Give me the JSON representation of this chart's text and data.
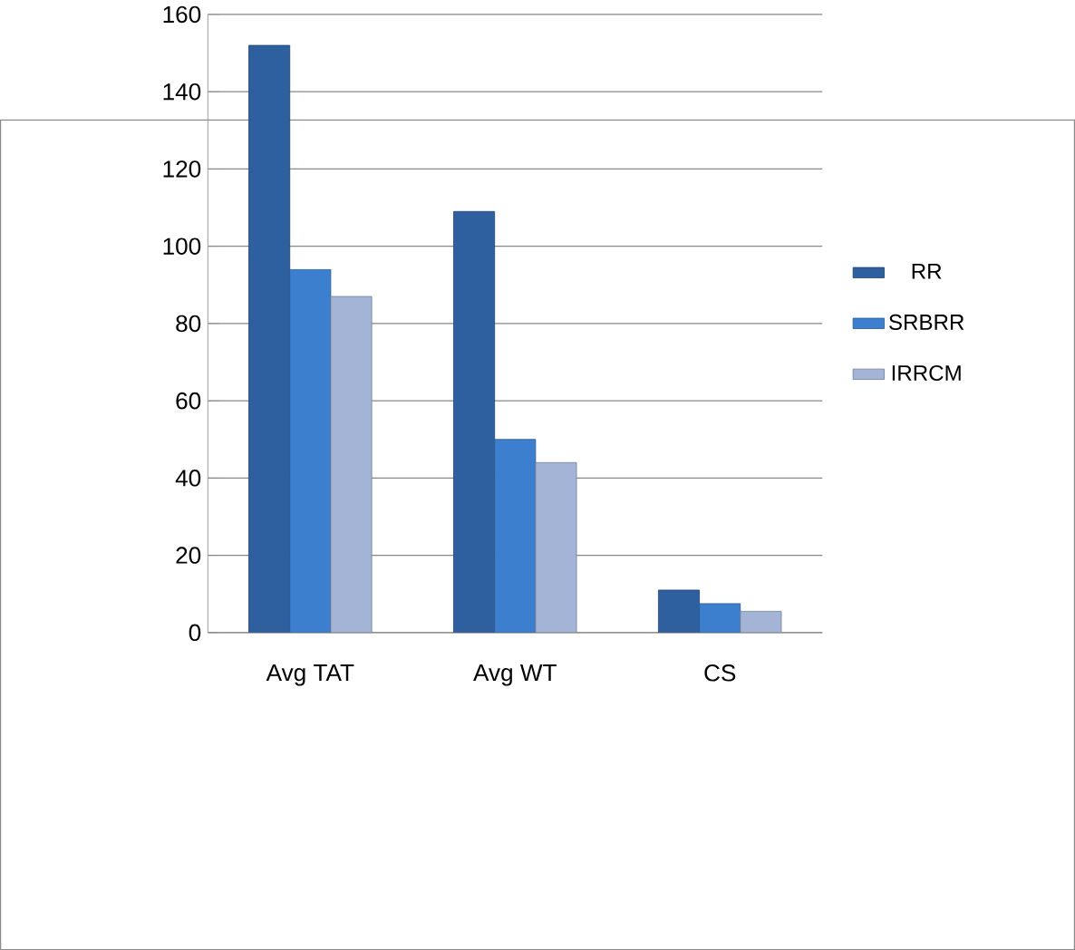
{
  "chart_data": {
    "type": "bar",
    "categories": [
      "Avg TAT",
      "Avg WT",
      "CS"
    ],
    "series": [
      {
        "name": "RR",
        "color": "#2e5f9e",
        "values": [
          152,
          109,
          11
        ]
      },
      {
        "name": "SRBRR",
        "color": "#3d7fcf",
        "values": [
          94,
          50,
          7.5
        ]
      },
      {
        "name": "IRRCM",
        "color": "#a3b4d6",
        "values": [
          87,
          44,
          5.5
        ]
      }
    ],
    "ylim": [
      0,
      160
    ],
    "yticks": [
      0,
      20,
      40,
      60,
      80,
      100,
      120,
      140,
      160
    ],
    "grid": "y",
    "legend": "right"
  }
}
